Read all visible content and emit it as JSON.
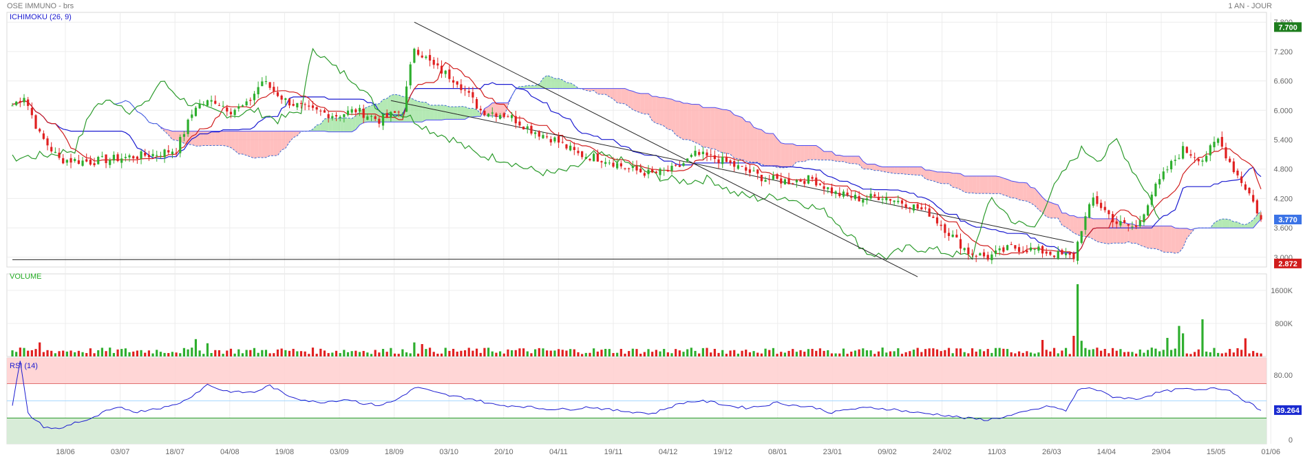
{
  "header": {
    "instrument": "OSE IMMUNO - brs",
    "period": "1 AN - JOUR"
  },
  "chart_data": [
    {
      "type": "candlestick",
      "indicator_label": "ICHIMOKU (26, 9)",
      "ylim": [
        2.8,
        8.0
      ],
      "y_ticks": [
        "3.000",
        "3.600",
        "4.200",
        "4.800",
        "5.400",
        "6.000",
        "6.600",
        "7.200",
        "7.800"
      ],
      "x_ticks": [
        "18/06",
        "03/07",
        "18/07",
        "04/08",
        "19/08",
        "03/09",
        "18/09",
        "03/10",
        "20/10",
        "04/11",
        "19/11",
        "04/12",
        "19/12",
        "08/01",
        "23/01",
        "09/02",
        "24/02",
        "11/03",
        "26/03",
        "14/04",
        "29/04",
        "15/05",
        "01/06"
      ],
      "price_badges": [
        {
          "label": "7.700",
          "value": 7.7,
          "color": "#1e7d1e"
        },
        {
          "label": "3.770",
          "value": 3.77,
          "color": "#3b73e6"
        },
        {
          "label": "2.872",
          "value": 2.872,
          "color": "#d01c1c"
        }
      ],
      "close_anchors": [
        {
          "d": 0,
          "v": 6.1
        },
        {
          "d": 3,
          "v": 6.3
        },
        {
          "d": 7,
          "v": 5.5
        },
        {
          "d": 12,
          "v": 5.0
        },
        {
          "d": 20,
          "v": 4.95
        },
        {
          "d": 30,
          "v": 5.05
        },
        {
          "d": 36,
          "v": 5.1
        },
        {
          "d": 42,
          "v": 5.2
        },
        {
          "d": 47,
          "v": 6.1
        },
        {
          "d": 52,
          "v": 6.2
        },
        {
          "d": 56,
          "v": 6.0
        },
        {
          "d": 60,
          "v": 6.1
        },
        {
          "d": 64,
          "v": 6.6
        },
        {
          "d": 70,
          "v": 6.2
        },
        {
          "d": 76,
          "v": 6.0
        },
        {
          "d": 83,
          "v": 5.9
        },
        {
          "d": 88,
          "v": 6.0
        },
        {
          "d": 94,
          "v": 5.8
        },
        {
          "d": 100,
          "v": 6.0
        },
        {
          "d": 103,
          "v": 7.3
        },
        {
          "d": 108,
          "v": 6.9
        },
        {
          "d": 114,
          "v": 6.6
        },
        {
          "d": 120,
          "v": 6.0
        },
        {
          "d": 127,
          "v": 5.9
        },
        {
          "d": 133,
          "v": 5.6
        },
        {
          "d": 139,
          "v": 5.4
        },
        {
          "d": 145,
          "v": 5.1
        },
        {
          "d": 152,
          "v": 5.0
        },
        {
          "d": 158,
          "v": 4.8
        },
        {
          "d": 164,
          "v": 4.7
        },
        {
          "d": 170,
          "v": 4.8
        },
        {
          "d": 175,
          "v": 5.1
        },
        {
          "d": 181,
          "v": 5.0
        },
        {
          "d": 187,
          "v": 4.8
        },
        {
          "d": 193,
          "v": 4.6
        },
        {
          "d": 199,
          "v": 4.55
        },
        {
          "d": 205,
          "v": 4.6
        },
        {
          "d": 211,
          "v": 4.3
        },
        {
          "d": 217,
          "v": 4.2
        },
        {
          "d": 223,
          "v": 4.25
        },
        {
          "d": 229,
          "v": 4.1
        },
        {
          "d": 235,
          "v": 3.9
        },
        {
          "d": 240,
          "v": 3.5
        },
        {
          "d": 245,
          "v": 3.1
        },
        {
          "d": 250,
          "v": 3.0
        },
        {
          "d": 256,
          "v": 3.2
        },
        {
          "d": 262,
          "v": 3.15
        },
        {
          "d": 268,
          "v": 3.05
        },
        {
          "d": 272,
          "v": 3.0
        },
        {
          "d": 274,
          "v": 3.6
        },
        {
          "d": 277,
          "v": 4.2
        },
        {
          "d": 283,
          "v": 3.7
        },
        {
          "d": 288,
          "v": 3.6
        },
        {
          "d": 292,
          "v": 4.3
        },
        {
          "d": 296,
          "v": 4.8
        },
        {
          "d": 300,
          "v": 5.2
        },
        {
          "d": 305,
          "v": 5.0
        },
        {
          "d": 309,
          "v": 5.4
        },
        {
          "d": 313,
          "v": 4.8
        },
        {
          "d": 317,
          "v": 4.3
        },
        {
          "d": 320,
          "v": 3.77
        }
      ],
      "days": 321,
      "trendlines": [
        {
          "from": {
            "d": 0,
            "v": 2.95
          },
          "to": {
            "d": 272,
            "v": 2.97
          }
        },
        {
          "from": {
            "d": 103,
            "v": 7.8
          },
          "to": {
            "d": 232,
            "v": 2.6
          }
        },
        {
          "from": {
            "d": 97,
            "v": 6.2
          },
          "to": {
            "d": 272,
            "v": 3.3
          }
        }
      ]
    },
    {
      "type": "bar",
      "indicator_label": "VOLUME",
      "ylim": [
        0,
        2000000
      ],
      "y_ticks": [
        "800K",
        "1600K"
      ],
      "spikes": [
        {
          "d": 273,
          "v": 1750000
        },
        {
          "d": 272,
          "v": 500000
        },
        {
          "d": 274,
          "v": 380000
        },
        {
          "d": 305,
          "v": 900000
        },
        {
          "d": 299,
          "v": 740000
        },
        {
          "d": 300,
          "v": 560000
        },
        {
          "d": 296,
          "v": 450000
        },
        {
          "d": 264,
          "v": 400000
        },
        {
          "d": 316,
          "v": 440000
        },
        {
          "d": 47,
          "v": 420000
        },
        {
          "d": 50,
          "v": 320000
        },
        {
          "d": 103,
          "v": 340000
        },
        {
          "d": 105,
          "v": 300000
        },
        {
          "d": 7,
          "v": 340000
        }
      ],
      "base_volume": 120000
    },
    {
      "type": "line",
      "indicator_label": "RSI (14)",
      "ylim": [
        0,
        100
      ],
      "y_ticks": [
        "0",
        "80.00"
      ],
      "upper_band": 70,
      "lower_band": 30,
      "last_value_label": "39.264",
      "last_value": 39.264,
      "anchors": [
        {
          "d": 0,
          "v": 45
        },
        {
          "d": 2,
          "v": 96
        },
        {
          "d": 4,
          "v": 35
        },
        {
          "d": 8,
          "v": 20
        },
        {
          "d": 12,
          "v": 17
        },
        {
          "d": 16,
          "v": 25
        },
        {
          "d": 20,
          "v": 28
        },
        {
          "d": 24,
          "v": 38
        },
        {
          "d": 28,
          "v": 42
        },
        {
          "d": 32,
          "v": 37
        },
        {
          "d": 36,
          "v": 41
        },
        {
          "d": 40,
          "v": 43
        },
        {
          "d": 44,
          "v": 50
        },
        {
          "d": 48,
          "v": 62
        },
        {
          "d": 50,
          "v": 69
        },
        {
          "d": 54,
          "v": 62
        },
        {
          "d": 58,
          "v": 60
        },
        {
          "d": 62,
          "v": 60
        },
        {
          "d": 66,
          "v": 68
        },
        {
          "d": 70,
          "v": 57
        },
        {
          "d": 74,
          "v": 52
        },
        {
          "d": 78,
          "v": 48
        },
        {
          "d": 82,
          "v": 50
        },
        {
          "d": 86,
          "v": 52
        },
        {
          "d": 90,
          "v": 47
        },
        {
          "d": 94,
          "v": 45
        },
        {
          "d": 98,
          "v": 50
        },
        {
          "d": 102,
          "v": 62
        },
        {
          "d": 104,
          "v": 66
        },
        {
          "d": 108,
          "v": 60
        },
        {
          "d": 112,
          "v": 56
        },
        {
          "d": 118,
          "v": 52
        },
        {
          "d": 124,
          "v": 45
        },
        {
          "d": 130,
          "v": 44
        },
        {
          "d": 136,
          "v": 41
        },
        {
          "d": 142,
          "v": 40
        },
        {
          "d": 148,
          "v": 43
        },
        {
          "d": 154,
          "v": 39
        },
        {
          "d": 160,
          "v": 37
        },
        {
          "d": 164,
          "v": 35
        },
        {
          "d": 168,
          "v": 42
        },
        {
          "d": 172,
          "v": 48
        },
        {
          "d": 176,
          "v": 50
        },
        {
          "d": 180,
          "v": 48
        },
        {
          "d": 184,
          "v": 44
        },
        {
          "d": 188,
          "v": 42
        },
        {
          "d": 192,
          "v": 44
        },
        {
          "d": 196,
          "v": 48
        },
        {
          "d": 200,
          "v": 45
        },
        {
          "d": 206,
          "v": 42
        },
        {
          "d": 210,
          "v": 36
        },
        {
          "d": 214,
          "v": 40
        },
        {
          "d": 220,
          "v": 42
        },
        {
          "d": 226,
          "v": 40
        },
        {
          "d": 232,
          "v": 36
        },
        {
          "d": 238,
          "v": 34
        },
        {
          "d": 244,
          "v": 30
        },
        {
          "d": 250,
          "v": 28
        },
        {
          "d": 256,
          "v": 33
        },
        {
          "d": 262,
          "v": 40
        },
        {
          "d": 266,
          "v": 44
        },
        {
          "d": 270,
          "v": 38
        },
        {
          "d": 273,
          "v": 62
        },
        {
          "d": 276,
          "v": 66
        },
        {
          "d": 282,
          "v": 55
        },
        {
          "d": 288,
          "v": 52
        },
        {
          "d": 294,
          "v": 60
        },
        {
          "d": 300,
          "v": 64
        },
        {
          "d": 304,
          "v": 62
        },
        {
          "d": 308,
          "v": 66
        },
        {
          "d": 312,
          "v": 62
        },
        {
          "d": 316,
          "v": 50
        },
        {
          "d": 320,
          "v": 39
        }
      ]
    }
  ]
}
